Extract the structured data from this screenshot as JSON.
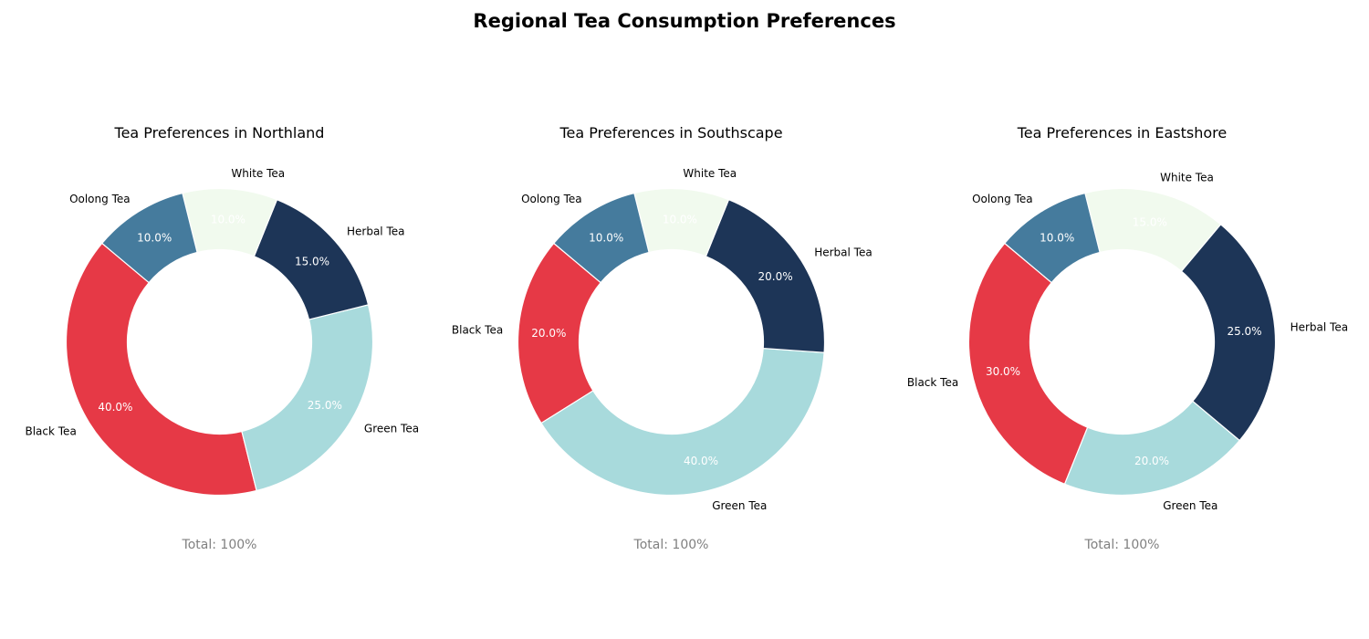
{
  "figure": {
    "title": "Regional Tea Consumption Preferences"
  },
  "chart_data": [
    {
      "type": "pie",
      "style": "donut",
      "title": "Tea Preferences in Northland",
      "categories": [
        "Black Tea",
        "Green Tea",
        "Herbal Tea",
        "White Tea",
        "Oolong Tea"
      ],
      "values": [
        40,
        25,
        15,
        10,
        10
      ],
      "value_labels": [
        "40.0%",
        "25.0%",
        "15.0%",
        "10.0%",
        "10.0%"
      ],
      "total_label": "Total: 100%"
    },
    {
      "type": "pie",
      "style": "donut",
      "title": "Tea Preferences in Southscape",
      "categories": [
        "Black Tea",
        "Green Tea",
        "Herbal Tea",
        "White Tea",
        "Oolong Tea"
      ],
      "values": [
        20,
        40,
        20,
        10,
        10
      ],
      "value_labels": [
        "20.0%",
        "40.0%",
        "20.0%",
        "10.0%",
        "10.0%"
      ],
      "total_label": "Total: 100%"
    },
    {
      "type": "pie",
      "style": "donut",
      "title": "Tea Preferences in Eastshore",
      "categories": [
        "Black Tea",
        "Green Tea",
        "Herbal Tea",
        "White Tea",
        "Oolong Tea"
      ],
      "values": [
        30,
        20,
        25,
        15,
        10
      ],
      "value_labels": [
        "30.0%",
        "20.0%",
        "25.0%",
        "15.0%",
        "10.0%"
      ],
      "total_label": "Total: 100%"
    }
  ],
  "colors": {
    "Black Tea": "#e63946",
    "Green Tea": "#a8dadc",
    "Herbal Tea": "#1d3557",
    "White Tea": "#f1faee",
    "Oolong Tea": "#457b9d"
  },
  "start_angle_deg": 140,
  "direction": "counterclockwise"
}
